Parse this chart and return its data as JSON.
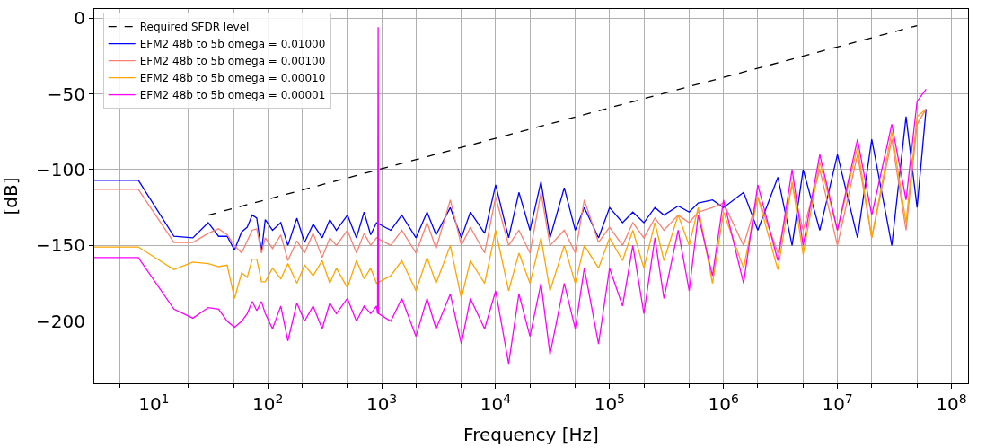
{
  "chart_data": {
    "type": "line",
    "xlabel": "Frequency [Hz]",
    "ylabel": "[dB]",
    "log": "x",
    "grid": true,
    "legend": "top left",
    "marker": "none",
    "xlim": [
      3,
      140000000
    ],
    "ylim": [
      -241,
      6
    ],
    "xticks": [
      {
        "value": 10,
        "label": "10$^{1}$"
      },
      {
        "value": 100,
        "label": "10$^{2}$"
      },
      {
        "value": 1000,
        "label": "10$^{3}$"
      },
      {
        "value": 10000,
        "label": "10$^{4}$"
      },
      {
        "value": 100000,
        "label": "10$^{5}$"
      },
      {
        "value": 1000000,
        "label": "10$^{6}$"
      },
      {
        "value": 10000000,
        "label": "10$^{7}$"
      },
      {
        "value": 100000000,
        "label": "10$^{8}$"
      }
    ],
    "yticks": [
      -200,
      -150,
      -100,
      -50,
      0
    ],
    "series": [
      {
        "name": "Required SFDR level",
        "color": "#000000",
        "line_style": "dashed",
        "x": [
          30,
          50000000
        ],
        "values": [
          -130,
          -5
        ]
      },
      {
        "name": "EFM2 48b to 5b omega = 0.01000",
        "color": "#0000ff",
        "line_style": "solid",
        "x": [
          3,
          7.3,
          15,
          22,
          30,
          37,
          44,
          51,
          59,
          66,
          73,
          80,
          88,
          95,
          110,
          130,
          150,
          180,
          210,
          250,
          300,
          350,
          400,
          500,
          600,
          700,
          800,
          900,
          1200,
          1500,
          2000,
          2500,
          3000,
          4000,
          5000,
          6000,
          8000,
          10000,
          13000,
          16000,
          20000,
          25000,
          30000,
          40000,
          50000,
          60000,
          80000,
          100000,
          130000,
          160000,
          200000,
          250000,
          300000,
          400000,
          500000,
          600000,
          800000,
          1000000,
          1500000,
          2000000,
          3000000,
          4000000,
          5000000,
          7000000,
          10000000,
          15000000,
          20000000,
          30000000,
          40000000,
          50000000,
          60000000
        ],
        "values": [
          -107,
          -107,
          -144,
          -145,
          -135,
          -144,
          -144,
          -153,
          -141,
          -138,
          -130,
          -132,
          -154,
          -133,
          -140,
          -135,
          -150,
          -132,
          -148,
          -136,
          -145,
          -133,
          -140,
          -130,
          -145,
          -128,
          -143,
          -135,
          -140,
          -130,
          -145,
          -128,
          -143,
          -125,
          -145,
          -128,
          -142,
          -110,
          -145,
          -115,
          -140,
          -108,
          -145,
          -112,
          -140,
          -125,
          -145,
          -125,
          -135,
          -128,
          -135,
          -125,
          -130,
          -124,
          -128,
          -122,
          -120,
          -125,
          -115,
          -140,
          -105,
          -150,
          -100,
          -140,
          -90,
          -145,
          -80,
          -150,
          -65,
          -125,
          -60
        ]
      },
      {
        "name": "EFM2 48b to 5b omega = 0.00100",
        "color": "#fa8072",
        "line_style": "solid",
        "x": [
          3,
          7.3,
          15,
          22,
          30,
          37,
          44,
          51,
          59,
          66,
          73,
          80,
          88,
          95,
          110,
          130,
          150,
          180,
          210,
          250,
          300,
          350,
          400,
          500,
          600,
          700,
          800,
          900,
          1200,
          1500,
          2000,
          2500,
          3000,
          4000,
          5000,
          6000,
          8000,
          10000,
          13000,
          16000,
          20000,
          25000,
          30000,
          40000,
          50000,
          60000,
          80000,
          100000,
          130000,
          160000,
          200000,
          250000,
          300000,
          400000,
          500000,
          600000,
          800000,
          1000000,
          1500000,
          2000000,
          3000000,
          4000000,
          5000000,
          7000000,
          10000000,
          15000000,
          20000000,
          30000000,
          40000000,
          50000000,
          60000000
        ],
        "values": [
          -113,
          -113,
          -148,
          -148,
          -142,
          -139,
          -143,
          -150,
          -155,
          -147,
          -140,
          -139,
          -155,
          -145,
          -152,
          -143,
          -160,
          -147,
          -155,
          -142,
          -158,
          -145,
          -150,
          -140,
          -155,
          -142,
          -150,
          -145,
          -150,
          -140,
          -155,
          -135,
          -152,
          -120,
          -150,
          -138,
          -155,
          -118,
          -150,
          -140,
          -155,
          -115,
          -150,
          -140,
          -155,
          -120,
          -148,
          -138,
          -150,
          -135,
          -145,
          -132,
          -140,
          -130,
          -135,
          -128,
          -125,
          -122,
          -150,
          -118,
          -155,
          -110,
          -140,
          -100,
          -150,
          -90,
          -145,
          -80,
          -140,
          -70,
          -60
        ]
      },
      {
        "name": "EFM2 48b to 5b omega = 0.00010",
        "color": "#ffa500",
        "line_style": "solid",
        "x": [
          3,
          7.3,
          15,
          22,
          30,
          37,
          44,
          51,
          59,
          66,
          73,
          80,
          88,
          95,
          110,
          130,
          150,
          180,
          210,
          250,
          300,
          350,
          400,
          500,
          600,
          700,
          800,
          900,
          1200,
          1500,
          2000,
          2500,
          3000,
          4000,
          5000,
          6000,
          8000,
          10000,
          13000,
          16000,
          20000,
          25000,
          30000,
          40000,
          50000,
          60000,
          80000,
          100000,
          130000,
          160000,
          200000,
          250000,
          300000,
          400000,
          500000,
          600000,
          800000,
          1000000,
          1500000,
          2000000,
          3000000,
          4000000,
          5000000,
          7000000,
          10000000,
          15000000,
          20000000,
          30000000,
          40000000,
          50000000,
          60000000
        ],
        "values": [
          -151,
          -151,
          -166,
          -161,
          -162,
          -164,
          -163,
          -185,
          -168,
          -171,
          -159,
          -159,
          -174,
          -174,
          -165,
          -172,
          -162,
          -175,
          -163,
          -170,
          -160,
          -175,
          -165,
          -178,
          -160,
          -172,
          -165,
          -175,
          -170,
          -160,
          -180,
          -158,
          -175,
          -150,
          -185,
          -160,
          -175,
          -140,
          -180,
          -155,
          -175,
          -145,
          -180,
          -150,
          -175,
          -150,
          -165,
          -145,
          -160,
          -140,
          -165,
          -135,
          -160,
          -130,
          -150,
          -125,
          -175,
          -128,
          -165,
          -118,
          -166,
          -108,
          -156,
          -95,
          -140,
          -85,
          -145,
          -75,
          -135,
          -65,
          -60
        ]
      },
      {
        "name": "EFM2 48b to 5b omega = 0.00001",
        "color": "#ff00ff",
        "line_style": "solid",
        "x": [
          3,
          7.3,
          15,
          22,
          30,
          37,
          44,
          51,
          59,
          66,
          73,
          80,
          88,
          95,
          110,
          130,
          150,
          180,
          210,
          250,
          300,
          350,
          400,
          500,
          600,
          700,
          800,
          900,
          920,
          930,
          940,
          1200,
          1500,
          2000,
          2500,
          3000,
          4000,
          5000,
          6000,
          8000,
          10000,
          13000,
          16000,
          20000,
          25000,
          30000,
          40000,
          50000,
          60000,
          80000,
          100000,
          130000,
          160000,
          200000,
          250000,
          300000,
          400000,
          500000,
          600000,
          800000,
          1000000,
          1500000,
          2000000,
          3000000,
          4000000,
          5000000,
          7000000,
          10000000,
          15000000,
          20000000,
          30000000,
          40000000,
          50000000,
          60000000
        ],
        "values": [
          -158,
          -158,
          -192,
          -198,
          -191,
          -192,
          -200,
          -204,
          -200,
          -195,
          -187,
          -193,
          -187,
          -195,
          -205,
          -190,
          -213,
          -188,
          -200,
          -190,
          -205,
          -188,
          -195,
          -185,
          -200,
          -190,
          -195,
          -190,
          -195,
          -6,
          -195,
          -200,
          -185,
          -210,
          -185,
          -205,
          -182,
          -215,
          -185,
          -205,
          -180,
          -228,
          -182,
          -210,
          -175,
          -222,
          -175,
          -205,
          -165,
          -215,
          -165,
          -190,
          -150,
          -195,
          -145,
          -185,
          -140,
          -180,
          -130,
          -170,
          -120,
          -175,
          -110,
          -160,
          -100,
          -150,
          -90,
          -140,
          -80,
          -130,
          -70,
          -120,
          -55,
          -47
        ]
      }
    ]
  }
}
